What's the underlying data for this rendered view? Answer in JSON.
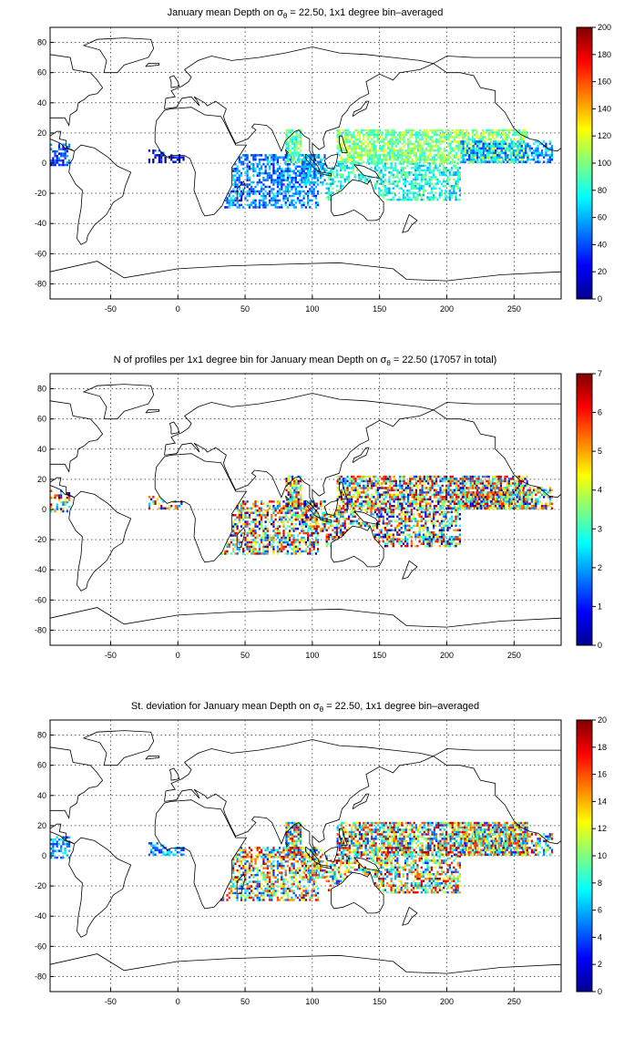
{
  "figure": {
    "colormap": "jet",
    "panels": [
      {
        "title_pre": "January mean Depth on ",
        "title_sigma": "σ",
        "title_sub": "θ",
        "title_post": " = 22.50, 1x1 degree bin–averaged",
        "xlim": [
          -95,
          285
        ],
        "ylim": [
          -90,
          90
        ],
        "xticks": [
          "-50",
          "0",
          "50",
          "100",
          "150",
          "200",
          "250"
        ],
        "yticks": [
          "80",
          "60",
          "40",
          "20",
          "0",
          "-20",
          "-40",
          "-60",
          "-80"
        ],
        "grid": true,
        "colorbar": {
          "min": 0,
          "max": 200,
          "ticks": [
            "200",
            "180",
            "160",
            "140",
            "120",
            "100",
            "80",
            "60",
            "40",
            "20",
            "0"
          ]
        },
        "field": "depth"
      },
      {
        "title_pre": "N of profiles per 1x1 degree bin for January mean Depth on ",
        "title_sigma": "σ",
        "title_sub": "θ",
        "title_post": " = 22.50 (17057 in total)",
        "xlim": [
          -95,
          285
        ],
        "ylim": [
          -90,
          90
        ],
        "xticks": [
          "-50",
          "0",
          "50",
          "100",
          "150",
          "200",
          "250"
        ],
        "yticks": [
          "80",
          "60",
          "40",
          "20",
          "0",
          "-20",
          "-40",
          "-60",
          "-80"
        ],
        "grid": true,
        "colorbar": {
          "min": 0,
          "max": 7,
          "ticks": [
            "7",
            "6",
            "5",
            "4",
            "3",
            "2",
            "1",
            "0"
          ]
        },
        "field": "count"
      },
      {
        "title_pre": "St. deviation for January mean Depth on ",
        "title_sigma": "σ",
        "title_sub": "θ",
        "title_post": " = 22.50, 1x1 degree bin–averaged",
        "xlim": [
          -95,
          285
        ],
        "ylim": [
          -90,
          90
        ],
        "xticks": [
          "-50",
          "0",
          "50",
          "100",
          "150",
          "200",
          "250"
        ],
        "yticks": [
          "80",
          "60",
          "40",
          "20",
          "0",
          "-20",
          "-40",
          "-60",
          "-80"
        ],
        "grid": true,
        "colorbar": {
          "min": 0,
          "max": 20,
          "ticks": [
            "20",
            "18",
            "16",
            "14",
            "12",
            "10",
            "8",
            "6",
            "4",
            "2",
            "0"
          ]
        },
        "field": "std"
      }
    ]
  }
}
